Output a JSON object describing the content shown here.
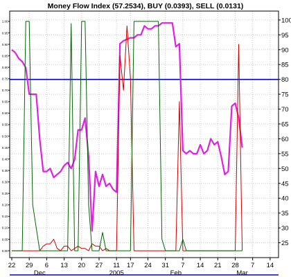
{
  "chart_data": {
    "type": "line",
    "title": "Money Flow Index (57.2534), BUY (0.0393), SELL (0.0131)",
    "left_axis": {
      "ylim": [
        -0.03,
        1.045
      ],
      "ticks": [
        "1.00",
        "0.95",
        "0.90",
        "0.85",
        "0.80",
        "0.75",
        "0.70",
        "0.65",
        "0.60",
        "0.55",
        "0.50",
        "0.45",
        "0.40",
        "0.35",
        "0.30",
        "0.25",
        "0.20",
        "0.15",
        "0.10",
        "0.05",
        "0.00"
      ]
    },
    "right_axis": {
      "ylim": [
        20,
        103
      ],
      "ticks": [
        "100",
        "95",
        "90",
        "85",
        "80",
        "75",
        "70",
        "65",
        "60",
        "55",
        "50",
        "45",
        "40",
        "35",
        "30",
        "25"
      ]
    },
    "x_axis": {
      "ticks": [
        {
          "label": "22",
          "i": 0
        },
        {
          "label": "29",
          "i": 5
        },
        {
          "label": "6",
          "i": 10
        },
        {
          "label": "13",
          "i": 15
        },
        {
          "label": "20",
          "i": 20
        },
        {
          "label": "27",
          "i": 25
        },
        {
          "label": "11",
          "i": 30
        },
        {
          "label": "17",
          "i": 34
        },
        {
          "label": "24",
          "i": 39
        },
        {
          "label": "31",
          "i": 44
        },
        {
          "label": "7",
          "i": 49
        },
        {
          "label": "14",
          "i": 54
        },
        {
          "label": "21",
          "i": 59
        },
        {
          "label": "28",
          "i": 64
        },
        {
          "label": "7",
          "i": 69
        },
        {
          "label": "14",
          "i": 74
        }
      ],
      "months": [
        {
          "label": "Dec",
          "i": 8
        },
        {
          "label": "2005",
          "i": 30
        },
        {
          "label": "Feb",
          "i": 47
        },
        {
          "label": "Mar",
          "i": 66
        }
      ],
      "n_slots": 77
    },
    "threshold": {
      "value": 80,
      "axis": "right",
      "color": "#0000cc"
    },
    "grid": true,
    "series": [
      {
        "axis": "right",
        "color": "#e020e0",
        "values": [
          90,
          89,
          87,
          86,
          84,
          75,
          75,
          75,
          60,
          49,
          49,
          50,
          47,
          48,
          49,
          51,
          52,
          50,
          53,
          63,
          63,
          67,
          54,
          29,
          49,
          44,
          48,
          44,
          45,
          43,
          42,
          92,
          93,
          93.5,
          94,
          94,
          95,
          95,
          98,
          97,
          97,
          98,
          98,
          99,
          99,
          99,
          99,
          91,
          92,
          56,
          55,
          56,
          55,
          55,
          58,
          55,
          56,
          60,
          58,
          59,
          54,
          48,
          49,
          71,
          72,
          67,
          57
        ]
      },
      {
        "axis": "left",
        "color": "#cc0000",
        "values": [
          0.0,
          0.0,
          0.0,
          0.0,
          0.0,
          0.0,
          0.0,
          0.0,
          0.0,
          0.02,
          0.03,
          0.03,
          0.05,
          0.01,
          0.0,
          0.02,
          0.02,
          0.0,
          0.01,
          0.02,
          0.01,
          0.01,
          0.0,
          0.03,
          0.02,
          0.02,
          0.0,
          0.01,
          0.0,
          0.0,
          0.0,
          0.85,
          0.7,
          0.98,
          0.75,
          0.0,
          0.0,
          0.0,
          0.0,
          0.0,
          0.0,
          0.0,
          0.0,
          0.0,
          0.0,
          0.0,
          0.0,
          0.0,
          0.65,
          0.0,
          0.0,
          0.0,
          0.0,
          0.0,
          0.0,
          0.0,
          0.0,
          0.0,
          0.0,
          0.0,
          0.0,
          0.0,
          0.0,
          0.0,
          0.0,
          0.9,
          0.0
        ]
      },
      {
        "axis": "left",
        "color": "#006600",
        "values": [
          0.0,
          0.0,
          0.0,
          0.0,
          1.0,
          1.0,
          0.2,
          0.1,
          0.0,
          0.0,
          0.0,
          0.0,
          0.0,
          0.0,
          0.0,
          0.0,
          0.0,
          0.99,
          0.0,
          0.0,
          1.0,
          1.0,
          0.2,
          0.0,
          0.0,
          0.0,
          0.08,
          0.0,
          0.0,
          0.0,
          0.0,
          0.0,
          0.0,
          0.0,
          0.0,
          1.0,
          1.0,
          1.0,
          1.0,
          1.0,
          1.0,
          1.0,
          1.0,
          0.05,
          0.0,
          0.0,
          0.0,
          0.0,
          0.0,
          0.05,
          0.0,
          0.0,
          0.0,
          0.0,
          0.0,
          0.0,
          0.0,
          0.0,
          0.0,
          0.0,
          0.0,
          0.0,
          0.0,
          0.0,
          0.0,
          0.0,
          0.0
        ]
      }
    ]
  }
}
